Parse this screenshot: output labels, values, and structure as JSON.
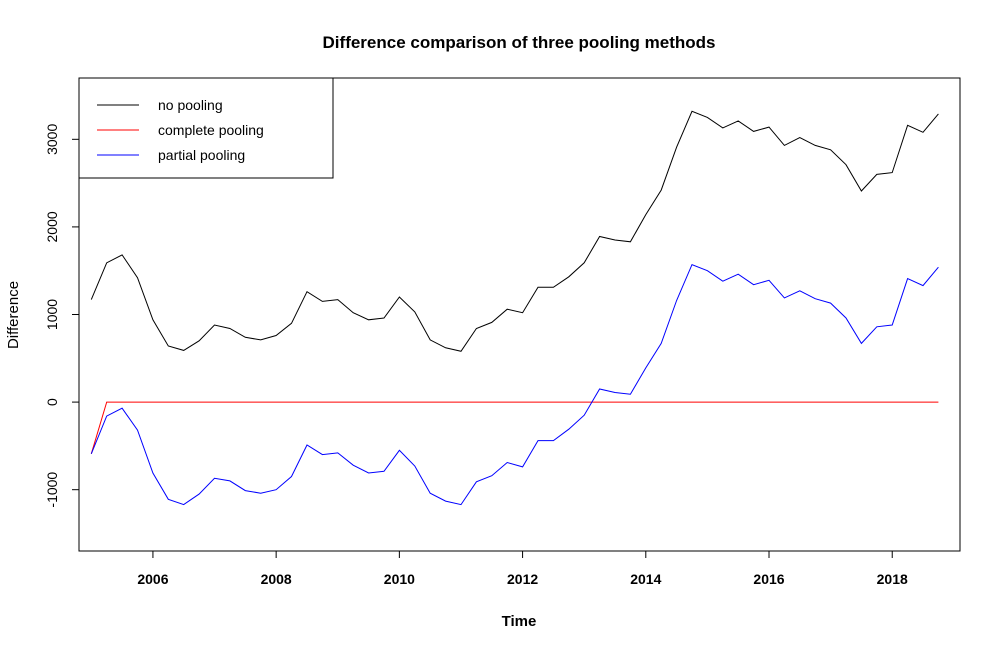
{
  "chart_data": {
    "type": "line",
    "title": "Difference comparison of three pooling methods",
    "xlabel": "Time",
    "ylabel": "Difference",
    "xlim": [
      2004.8,
      2019.1
    ],
    "ylim": [
      -1700,
      3700
    ],
    "xticks": [
      2006,
      2008,
      2010,
      2012,
      2014,
      2016,
      2018
    ],
    "yticks": [
      -1000,
      0,
      1000,
      2000,
      3000
    ],
    "legend_position": "top-left",
    "grid": false,
    "x": [
      2005.0,
      2005.25,
      2005.5,
      2005.75,
      2006.0,
      2006.25,
      2006.5,
      2006.75,
      2007.0,
      2007.25,
      2007.5,
      2007.75,
      2008.0,
      2008.25,
      2008.5,
      2008.75,
      2009.0,
      2009.25,
      2009.5,
      2009.75,
      2010.0,
      2010.25,
      2010.5,
      2010.75,
      2011.0,
      2011.25,
      2011.5,
      2011.75,
      2012.0,
      2012.25,
      2012.5,
      2012.75,
      2013.0,
      2013.25,
      2013.5,
      2013.75,
      2014.0,
      2014.25,
      2014.5,
      2014.75,
      2015.0,
      2015.25,
      2015.5,
      2015.75,
      2016.0,
      2016.25,
      2016.5,
      2016.75,
      2017.0,
      2017.25,
      2017.5,
      2017.75,
      2018.0,
      2018.25,
      2018.5,
      2018.75
    ],
    "series": [
      {
        "name": "no pooling",
        "color": "#000000",
        "values": [
          1170,
          1590,
          1680,
          1420,
          940,
          640,
          590,
          700,
          880,
          840,
          740,
          710,
          760,
          900,
          1260,
          1150,
          1170,
          1020,
          940,
          960,
          1200,
          1030,
          710,
          620,
          580,
          840,
          910,
          1060,
          1020,
          1310,
          1310,
          1430,
          1590,
          1890,
          1850,
          1830,
          2140,
          2420,
          2910,
          3320,
          3250,
          3130,
          3210,
          3090,
          3140,
          2930,
          3020,
          2930,
          2880,
          2710,
          2410,
          2600,
          2620,
          3160,
          3080,
          3290
        ]
      },
      {
        "name": "complete pooling",
        "color": "#ff0000",
        "values": [
          -590,
          0,
          0,
          0,
          0,
          0,
          0,
          0,
          0,
          0,
          0,
          0,
          0,
          0,
          0,
          0,
          0,
          0,
          0,
          0,
          0,
          0,
          0,
          0,
          0,
          0,
          0,
          0,
          0,
          0,
          0,
          0,
          0,
          0,
          0,
          0,
          0,
          0,
          0,
          0,
          0,
          0,
          0,
          0,
          0,
          0,
          0,
          0,
          0,
          0,
          0,
          0,
          0,
          0,
          0,
          0
        ]
      },
      {
        "name": "partial pooling",
        "color": "#0000ff",
        "values": [
          -590,
          -160,
          -70,
          -320,
          -810,
          -1110,
          -1170,
          -1050,
          -870,
          -900,
          -1010,
          -1040,
          -1000,
          -850,
          -490,
          -600,
          -580,
          -720,
          -810,
          -790,
          -550,
          -730,
          -1040,
          -1130,
          -1170,
          -910,
          -840,
          -690,
          -740,
          -440,
          -440,
          -310,
          -150,
          150,
          110,
          90,
          390,
          670,
          1160,
          1570,
          1500,
          1380,
          1460,
          1340,
          1390,
          1190,
          1270,
          1180,
          1130,
          960,
          670,
          860,
          880,
          1410,
          1330,
          1540
        ]
      }
    ]
  }
}
